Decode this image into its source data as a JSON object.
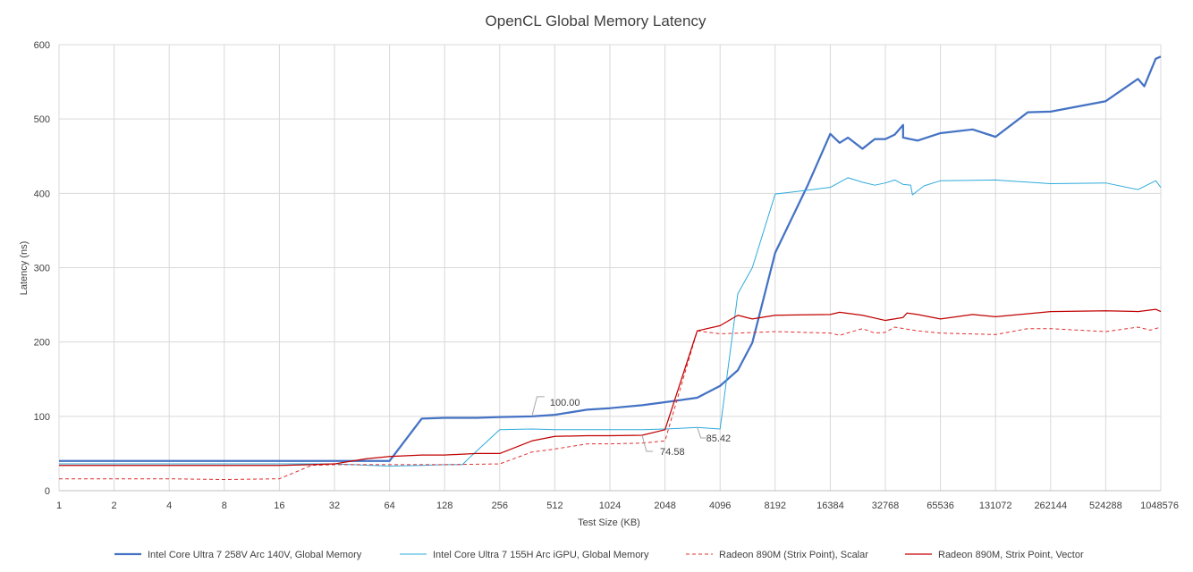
{
  "chart_data": {
    "type": "line",
    "title": "OpenCL Global Memory Latency",
    "xlabel": "Test Size (KB)",
    "ylabel": "Latency (ns)",
    "x_scale": "log2",
    "xlim": [
      1,
      1048576
    ],
    "ylim": [
      0,
      600
    ],
    "y_ticks": [
      "0",
      "100",
      "200",
      "300",
      "400",
      "500",
      "600"
    ],
    "x_ticks": [
      "1",
      "2",
      "4",
      "8",
      "16",
      "32",
      "64",
      "128",
      "256",
      "512",
      "1024",
      "2048",
      "4096",
      "8192",
      "16384",
      "32768",
      "65536",
      "131072",
      "262144",
      "524288",
      "1048576"
    ],
    "grid": "vertical and horizontal",
    "legend_position": "bottom",
    "series": [
      {
        "name": "Intel Core Ultra 7 258V Arc 140V, Global Memory",
        "color": "#4472C4",
        "dash": "solid",
        "width": "thick",
        "points": [
          [
            1,
            40
          ],
          [
            2,
            40
          ],
          [
            4,
            40
          ],
          [
            8,
            40
          ],
          [
            16,
            40
          ],
          [
            32,
            40
          ],
          [
            64,
            40
          ],
          [
            96,
            97
          ],
          [
            128,
            98
          ],
          [
            192,
            98
          ],
          [
            256,
            99
          ],
          [
            384,
            100
          ],
          [
            512,
            102
          ],
          [
            768,
            109
          ],
          [
            1024,
            111
          ],
          [
            1536,
            115
          ],
          [
            2048,
            119
          ],
          [
            3072,
            125
          ],
          [
            4096,
            141
          ],
          [
            5120,
            162
          ],
          [
            6144,
            199
          ],
          [
            8192,
            320
          ],
          [
            12288,
            410
          ],
          [
            16384,
            480
          ],
          [
            18432,
            468
          ],
          [
            20480,
            475
          ],
          [
            24576,
            460
          ],
          [
            28672,
            473
          ],
          [
            32768,
            473
          ],
          [
            36864,
            479
          ],
          [
            40960,
            492
          ],
          [
            40960,
            475
          ],
          [
            49152,
            471
          ],
          [
            65536,
            481
          ],
          [
            98304,
            486
          ],
          [
            131072,
            476
          ],
          [
            196608,
            509
          ],
          [
            262144,
            510
          ],
          [
            524288,
            524
          ],
          [
            786432,
            554
          ],
          [
            851968,
            544
          ],
          [
            983040,
            581
          ],
          [
            1048576,
            584
          ]
        ]
      },
      {
        "name": "Intel Core Ultra 7 155H Arc iGPU, Global Memory",
        "color": "#2EAADC",
        "dash": "solid",
        "width": "thin",
        "points": [
          [
            1,
            36
          ],
          [
            2,
            36
          ],
          [
            4,
            36
          ],
          [
            8,
            36
          ],
          [
            16,
            36
          ],
          [
            32,
            36
          ],
          [
            64,
            33
          ],
          [
            96,
            34
          ],
          [
            128,
            35
          ],
          [
            160,
            35
          ],
          [
            176,
            45
          ],
          [
            256,
            82
          ],
          [
            384,
            83
          ],
          [
            512,
            82
          ],
          [
            768,
            82
          ],
          [
            1024,
            82
          ],
          [
            1536,
            82
          ],
          [
            2048,
            83
          ],
          [
            3072,
            85
          ],
          [
            4096,
            83
          ],
          [
            5120,
            265
          ],
          [
            6144,
            300
          ],
          [
            8192,
            399
          ],
          [
            16384,
            408
          ],
          [
            20480,
            421
          ],
          [
            24576,
            415
          ],
          [
            28672,
            411
          ],
          [
            32768,
            414
          ],
          [
            36864,
            418
          ],
          [
            40960,
            412
          ],
          [
            45056,
            411
          ],
          [
            46080,
            398
          ],
          [
            53248,
            410
          ],
          [
            65536,
            417
          ],
          [
            131072,
            418
          ],
          [
            262144,
            413
          ],
          [
            524288,
            414
          ],
          [
            786432,
            405
          ],
          [
            983040,
            417
          ],
          [
            1048576,
            408
          ]
        ]
      },
      {
        "name": "Radeon 890M (Strix Point), Scalar",
        "color": "#E03030",
        "dash": "dashed",
        "width": "thin",
        "points": [
          [
            1,
            16
          ],
          [
            2,
            16
          ],
          [
            4,
            16
          ],
          [
            8,
            15
          ],
          [
            16,
            16
          ],
          [
            24,
            34
          ],
          [
            32,
            35
          ],
          [
            64,
            35
          ],
          [
            128,
            35
          ],
          [
            256,
            36
          ],
          [
            384,
            52
          ],
          [
            512,
            56
          ],
          [
            768,
            63
          ],
          [
            1024,
            63
          ],
          [
            1536,
            64
          ],
          [
            2048,
            67
          ],
          [
            3072,
            215
          ],
          [
            4096,
            211
          ],
          [
            8192,
            214
          ],
          [
            16384,
            212
          ],
          [
            18432,
            209
          ],
          [
            24576,
            218
          ],
          [
            28672,
            212
          ],
          [
            32768,
            213
          ],
          [
            36864,
            220
          ],
          [
            49152,
            215
          ],
          [
            65536,
            212
          ],
          [
            131072,
            210
          ],
          [
            196608,
            218
          ],
          [
            262144,
            218
          ],
          [
            524288,
            214
          ],
          [
            786432,
            220
          ],
          [
            917504,
            216
          ],
          [
            1048576,
            220
          ]
        ]
      },
      {
        "name": "Radeon 890M, Strix Point, Vector",
        "color": "#C00000",
        "dash": "solid",
        "width": "medium",
        "points": [
          [
            1,
            34
          ],
          [
            2,
            34
          ],
          [
            4,
            34
          ],
          [
            8,
            34
          ],
          [
            16,
            34
          ],
          [
            24,
            35
          ],
          [
            32,
            36
          ],
          [
            48,
            43
          ],
          [
            64,
            46
          ],
          [
            96,
            48
          ],
          [
            128,
            48
          ],
          [
            192,
            50
          ],
          [
            256,
            50
          ],
          [
            384,
            67
          ],
          [
            512,
            73
          ],
          [
            768,
            74
          ],
          [
            1024,
            74
          ],
          [
            1536,
            74.58
          ],
          [
            2048,
            82
          ],
          [
            3072,
            215
          ],
          [
            4096,
            222
          ],
          [
            5120,
            236
          ],
          [
            6144,
            231
          ],
          [
            8192,
            236
          ],
          [
            16384,
            237
          ],
          [
            18432,
            240
          ],
          [
            24576,
            236
          ],
          [
            32768,
            229
          ],
          [
            40960,
            233
          ],
          [
            43008,
            239
          ],
          [
            49152,
            237
          ],
          [
            65536,
            231
          ],
          [
            98304,
            237
          ],
          [
            131072,
            234
          ],
          [
            262144,
            241
          ],
          [
            524288,
            242
          ],
          [
            786432,
            241
          ],
          [
            983040,
            244
          ],
          [
            1048576,
            241
          ]
        ]
      }
    ],
    "annotations": [
      {
        "label": "100.00",
        "x": 384,
        "y": 100
      },
      {
        "label": "74.58",
        "x": 1536,
        "y": 74.58
      },
      {
        "label": "85.42",
        "x": 3072,
        "y": 85.42
      }
    ]
  }
}
